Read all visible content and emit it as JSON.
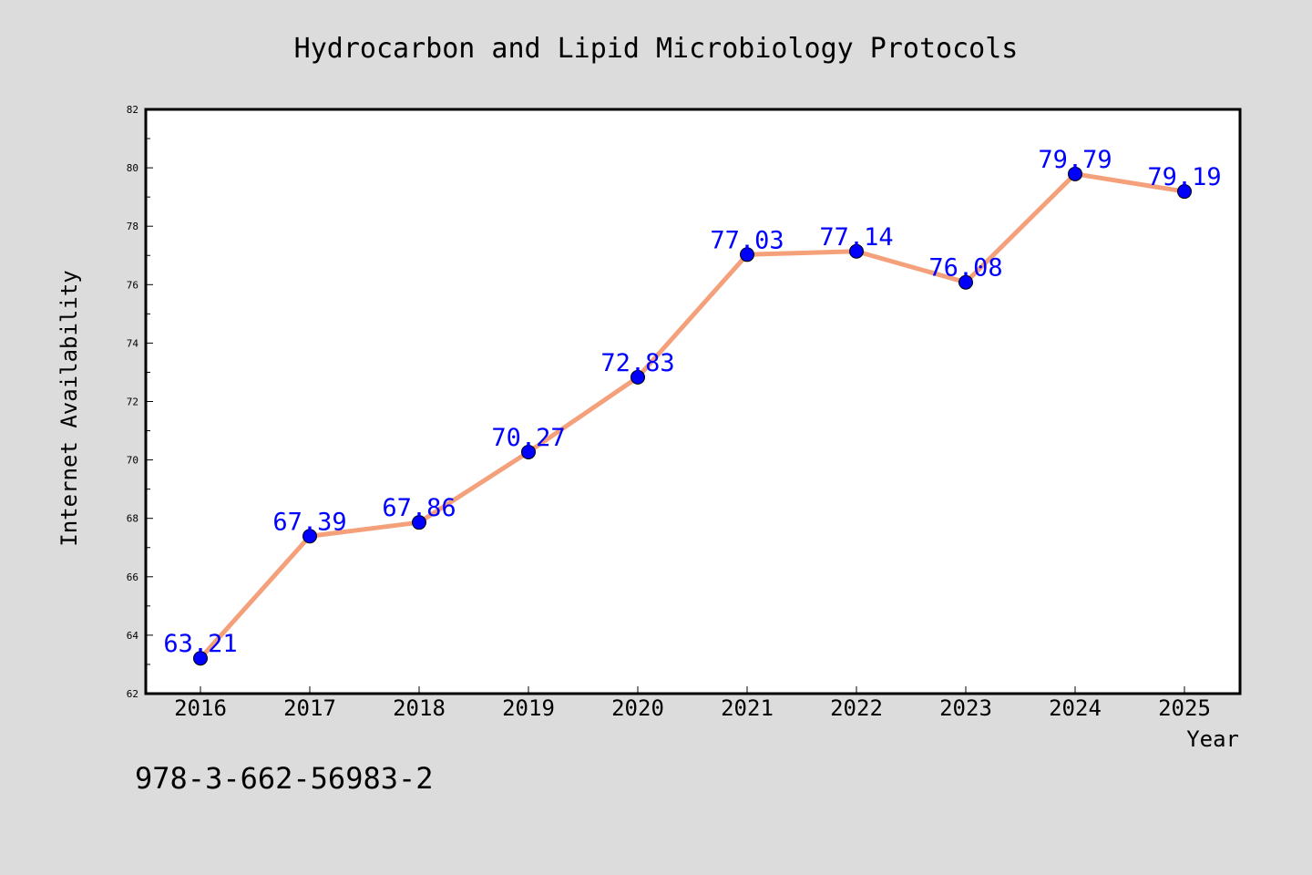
{
  "chart_data": {
    "type": "line",
    "title": "Hydrocarbon and Lipid Microbiology Protocols",
    "xlabel": "Year",
    "ylabel": "Internet Availability",
    "x": [
      "2016",
      "2017",
      "2018",
      "2019",
      "2020",
      "2021",
      "2022",
      "2023",
      "2024",
      "2025"
    ],
    "series": [
      {
        "values": [
          63.21,
          67.39,
          67.86,
          70.27,
          72.83,
          77.03,
          77.14,
          76.08,
          79.79,
          79.19
        ],
        "labels": [
          "63.21",
          "67.39",
          "67.86",
          "70.27",
          "72.83",
          "77.03",
          "77.14",
          "76.08",
          "79.79",
          "79.19"
        ],
        "line_color": "#f4a07a",
        "marker_color": "#0000ff"
      }
    ],
    "ylim": [
      62,
      82
    ],
    "yticks": [
      "62",
      "64",
      "66",
      "68",
      "70",
      "72",
      "74",
      "76",
      "78",
      "80",
      "82"
    ],
    "grid": false,
    "legend": "none"
  },
  "footer": {
    "isbn": "978-3-662-56983-2"
  },
  "colors": {
    "background": "#dcdcdc",
    "plot_background": "#ffffff",
    "line": "#f4a07a",
    "marker": "#0000ff",
    "data_label": "#0000ff"
  }
}
